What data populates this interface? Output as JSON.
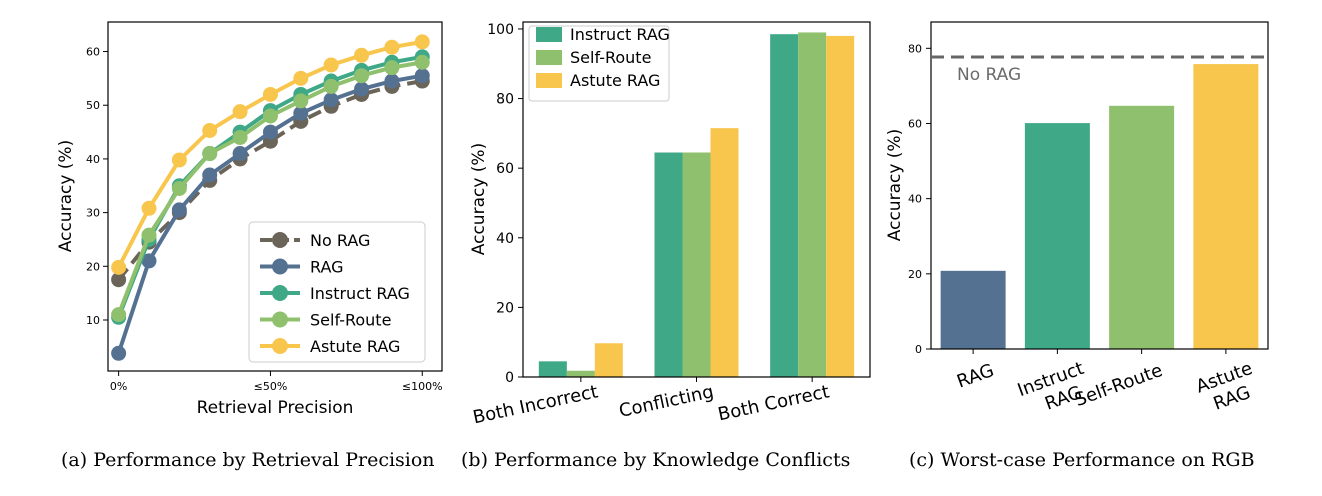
{
  "chart_data": [
    {
      "type": "line",
      "title": "",
      "xlabel": "Retrieval Precision",
      "ylabel": "Accuracy (%)",
      "x": [
        0,
        10,
        20,
        30,
        40,
        50,
        60,
        70,
        80,
        90,
        100
      ],
      "xticks": [
        {
          "value": 0,
          "label": "0%"
        },
        {
          "value": 50,
          "label": "≤50%"
        },
        {
          "value": 100,
          "label": "≤100%"
        }
      ],
      "yticks": [
        10,
        20,
        30,
        40,
        50,
        60
      ],
      "xlim": [
        -3.5,
        106.5
      ],
      "ylim": [
        0.5,
        65.5
      ],
      "grid": false,
      "legend_position": "lower-right",
      "series": [
        {
          "name": "No RAG",
          "color": "#6b6459",
          "dashed": true,
          "values": [
            17.5,
            24.5,
            30.0,
            36.0,
            40.0,
            43.3,
            47.0,
            49.8,
            52.0,
            53.5,
            54.5
          ]
        },
        {
          "name": "RAG",
          "color": "#557192",
          "dashed": false,
          "values": [
            3.8,
            21.0,
            30.5,
            37.0,
            41.0,
            45.0,
            48.5,
            51.0,
            53.0,
            54.5,
            55.5
          ]
        },
        {
          "name": "Instruct RAG",
          "color": "#3fa886",
          "dashed": false,
          "values": [
            10.5,
            25.0,
            35.0,
            41.0,
            45.0,
            49.0,
            52.0,
            54.5,
            56.5,
            58.0,
            59.0
          ]
        },
        {
          "name": "Self-Route",
          "color": "#8fc06d",
          "dashed": false,
          "values": [
            11.0,
            25.8,
            34.5,
            41.0,
            44.0,
            48.0,
            50.8,
            53.5,
            55.5,
            57.0,
            58.0
          ]
        },
        {
          "name": "Astute RAG",
          "color": "#f8c64d",
          "dashed": false,
          "values": [
            19.8,
            30.8,
            39.8,
            45.3,
            48.8,
            52.0,
            55.0,
            57.5,
            59.3,
            60.8,
            61.8
          ]
        }
      ]
    },
    {
      "type": "bar",
      "title": "",
      "xlabel": "",
      "ylabel": "Accuracy (%)",
      "categories": [
        "Both Incorrect",
        "Conflicting",
        "Both Correct"
      ],
      "yticks": [
        0,
        20,
        40,
        60,
        80,
        100
      ],
      "ylim": [
        0,
        102
      ],
      "legend_position": "top-left",
      "series": [
        {
          "name": "Instruct RAG",
          "color": "#3fa886",
          "values": [
            4.5,
            64.5,
            98.5
          ]
        },
        {
          "name": "Self-Route",
          "color": "#8fc06d",
          "values": [
            1.8,
            64.5,
            99.0
          ]
        },
        {
          "name": "Astute RAG",
          "color": "#f8c64d",
          "values": [
            9.7,
            71.5,
            98.0
          ]
        }
      ]
    },
    {
      "type": "bar",
      "title": "",
      "xlabel": "",
      "ylabel": "Accuracy (%)",
      "categories": [
        "RAG",
        "Instruct RAG",
        "Self-Route",
        "Astute RAG"
      ],
      "category_lines": [
        [
          "RAG"
        ],
        [
          "Instruct",
          "RAG"
        ],
        [
          "Self-Route"
        ],
        [
          "Astute",
          "RAG"
        ]
      ],
      "values": [
        20.8,
        60.1,
        64.7,
        75.8
      ],
      "colors": [
        "#557192",
        "#3fa886",
        "#8fc06d",
        "#f8c64d"
      ],
      "yticks": [
        0,
        20,
        40,
        60,
        80
      ],
      "ylim": [
        0,
        87
      ],
      "reference_line": {
        "label": "No RAG",
        "value": 77.7,
        "color": "#666666"
      }
    }
  ],
  "captions": [
    "(a)  Performance by Retrieval Precision",
    "(b)  Performance by Knowledge Conflicts",
    "(c)  Worst-case Performance on RGB"
  ]
}
